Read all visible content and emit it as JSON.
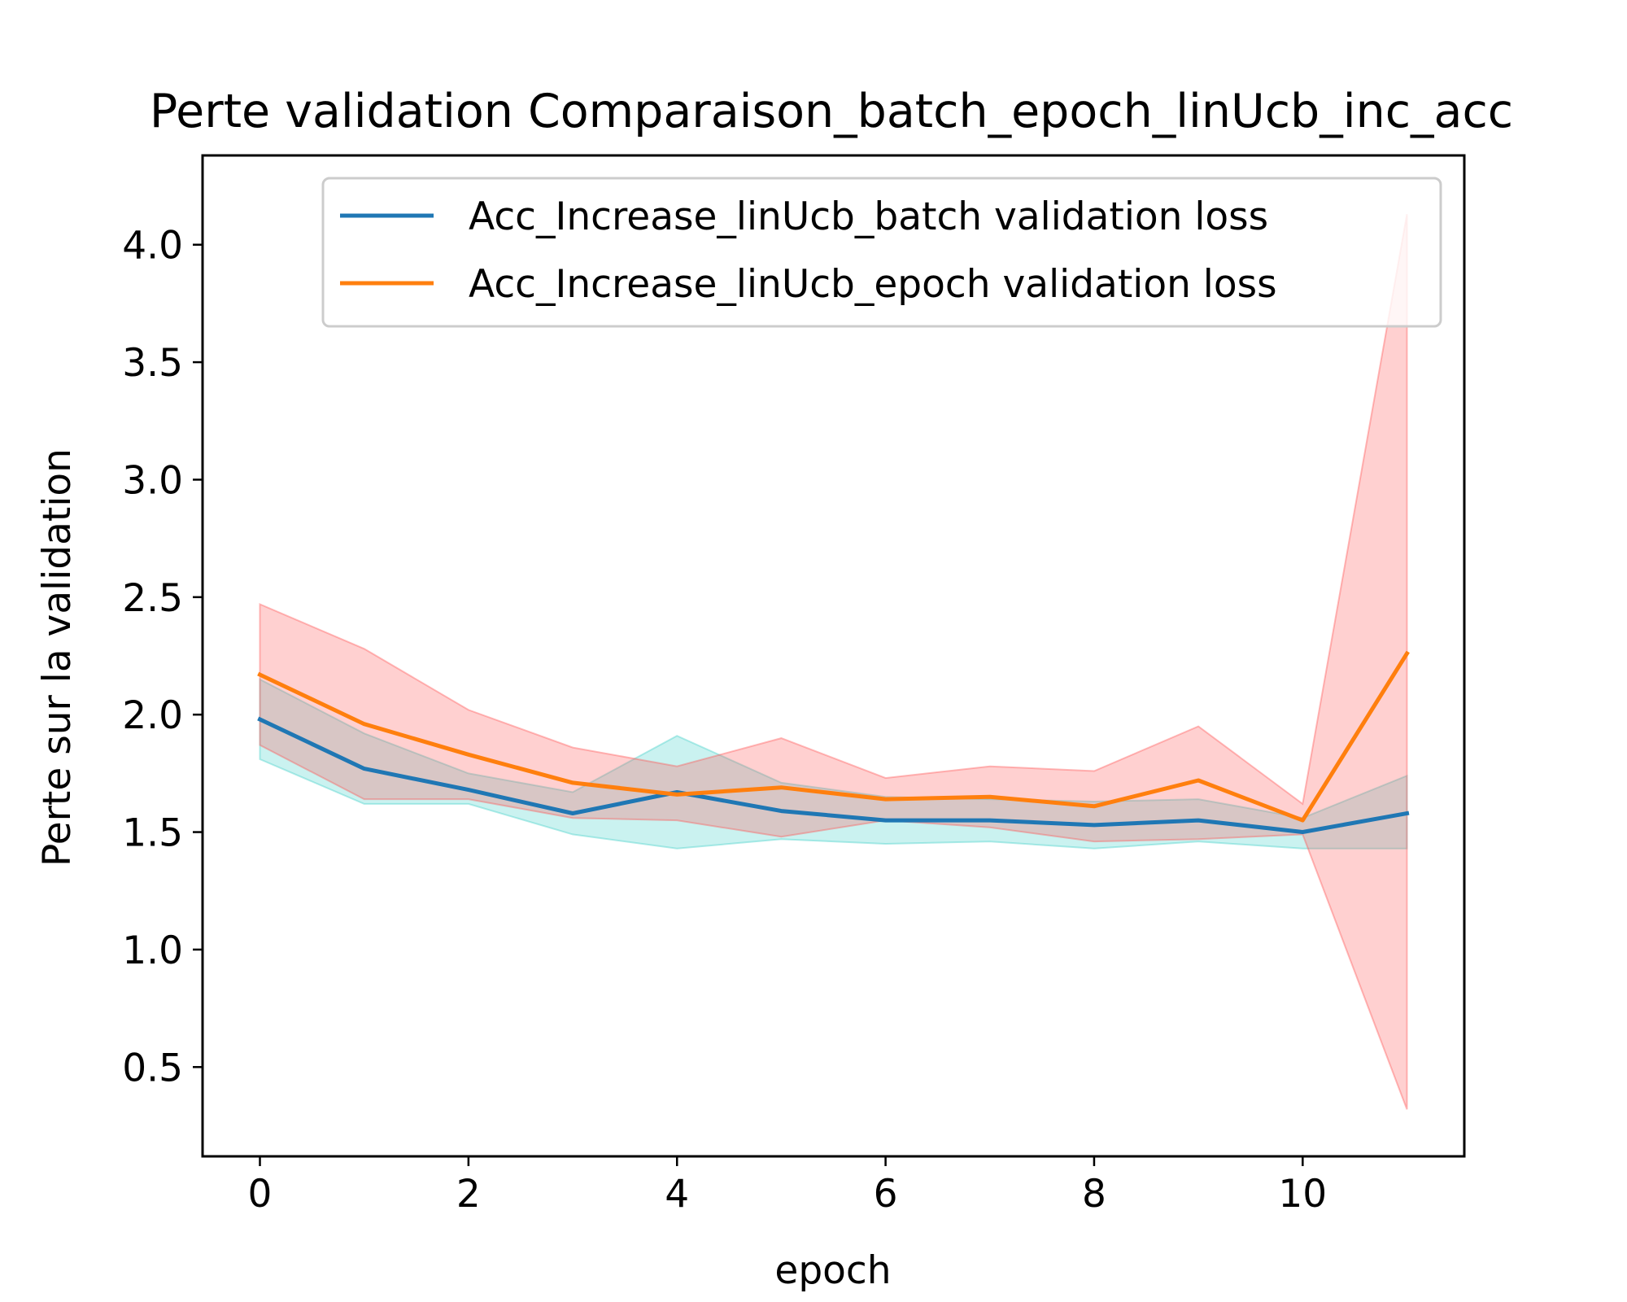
{
  "chart_data": {
    "type": "line",
    "title": "Perte validation Comparaison_batch_epoch_linUcb_inc_acc",
    "xlabel": "epoch",
    "ylabel": "Perte sur la validation",
    "xlim": [
      -0.55,
      11.55
    ],
    "ylim": [
      0.12,
      4.38
    ],
    "xticks": [
      0,
      2,
      4,
      6,
      8,
      10
    ],
    "xtick_labels": [
      "0",
      "2",
      "4",
      "6",
      "8",
      "10"
    ],
    "yticks": [
      0.5,
      1.0,
      1.5,
      2.0,
      2.5,
      3.0,
      3.5,
      4.0
    ],
    "ytick_labels": [
      "0.5",
      "1.0",
      "1.5",
      "2.0",
      "2.5",
      "3.0",
      "3.5",
      "4.0"
    ],
    "grid": false,
    "legend_position": "top-right",
    "x": [
      0,
      1,
      2,
      3,
      4,
      5,
      6,
      7,
      8,
      9,
      10,
      11
    ],
    "series": [
      {
        "name": "Acc_Increase_linUcb_batch validation loss",
        "color": "#1f77b4",
        "band_color": "#40d0c8",
        "values": [
          1.98,
          1.77,
          1.68,
          1.58,
          1.67,
          1.59,
          1.55,
          1.55,
          1.53,
          1.55,
          1.5,
          1.58
        ],
        "band_lower": [
          1.81,
          1.62,
          1.62,
          1.49,
          1.43,
          1.47,
          1.45,
          1.46,
          1.43,
          1.46,
          1.43,
          1.43
        ],
        "band_upper": [
          2.15,
          1.92,
          1.75,
          1.67,
          1.91,
          1.71,
          1.65,
          1.64,
          1.63,
          1.64,
          1.56,
          1.74
        ]
      },
      {
        "name": "Acc_Increase_linUcb_epoch validation loss",
        "color": "#ff7f0e",
        "band_color": "#ff5555",
        "values": [
          2.17,
          1.96,
          1.83,
          1.71,
          1.66,
          1.69,
          1.64,
          1.65,
          1.61,
          1.72,
          1.55,
          2.26
        ],
        "band_lower": [
          1.87,
          1.64,
          1.64,
          1.56,
          1.55,
          1.48,
          1.55,
          1.52,
          1.46,
          1.47,
          1.49,
          0.32
        ],
        "band_upper": [
          2.47,
          2.28,
          2.02,
          1.86,
          1.78,
          1.9,
          1.73,
          1.78,
          1.76,
          1.95,
          1.62,
          4.13
        ]
      }
    ]
  }
}
